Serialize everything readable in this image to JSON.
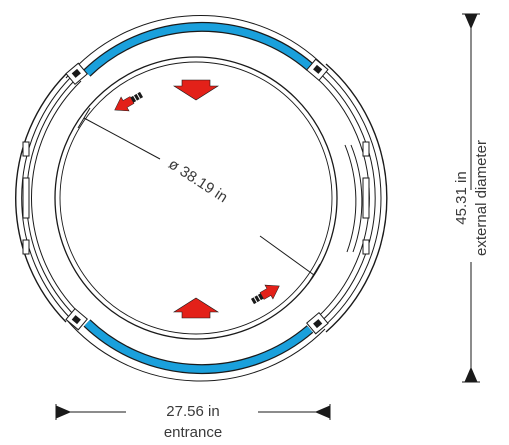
{
  "inner_diameter": {
    "label": "ø 38.19 in"
  },
  "external_diameter": {
    "value": "45.31 in",
    "caption": "external  diameter"
  },
  "entrance": {
    "value": "27.56 in",
    "caption": "entrance"
  },
  "colors": {
    "accent_ring": "#1aa0dc",
    "arrow": "#e32119",
    "line": "#1a1a1a"
  },
  "icons": {
    "top_arrow": "down-arrow-icon",
    "bottom_arrow": "up-arrow-icon",
    "rotate_top": "rotation-arrow-icon",
    "rotate_bottom": "rotation-arrow-icon"
  }
}
